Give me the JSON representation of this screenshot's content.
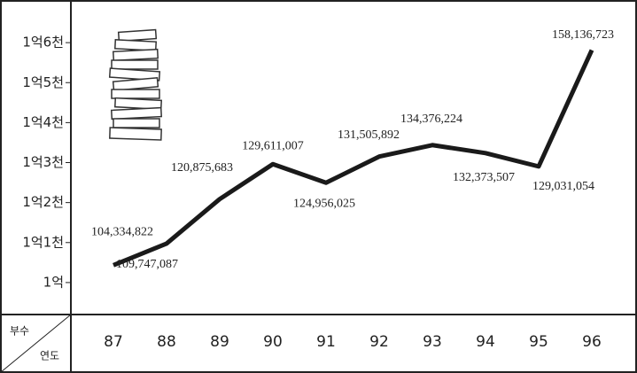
{
  "chart_data": {
    "type": "line",
    "categories": [
      "87",
      "88",
      "89",
      "90",
      "91",
      "92",
      "93",
      "94",
      "95",
      "96"
    ],
    "series": [
      {
        "color": "#1a1a1a",
        "values": [
          104334822,
          109747087,
          120875683,
          129611007,
          124956025,
          131505892,
          134376224,
          132373507,
          129031054,
          158136723
        ],
        "value_labels": [
          "104,334,822",
          "109,747,087",
          "120,875,683",
          "129,611,007",
          "124,956,025",
          "131,505,892",
          "134,376,224",
          "132,373,507",
          "129,031,054",
          "158,136,723"
        ]
      }
    ],
    "ylim": [
      92000000,
      170000000
    ],
    "yticks": [
      {
        "value": 100000000,
        "label": "1억"
      },
      {
        "value": 110000000,
        "label": "1억1천"
      },
      {
        "value": 120000000,
        "label": "1억2천"
      },
      {
        "value": 130000000,
        "label": "1억3천"
      },
      {
        "value": 140000000,
        "label": "1억4천"
      },
      {
        "value": 150000000,
        "label": "1억5천"
      },
      {
        "value": 160000000,
        "label": "1억6천"
      }
    ],
    "corner_top": "부수",
    "corner_bottom": "연도"
  }
}
